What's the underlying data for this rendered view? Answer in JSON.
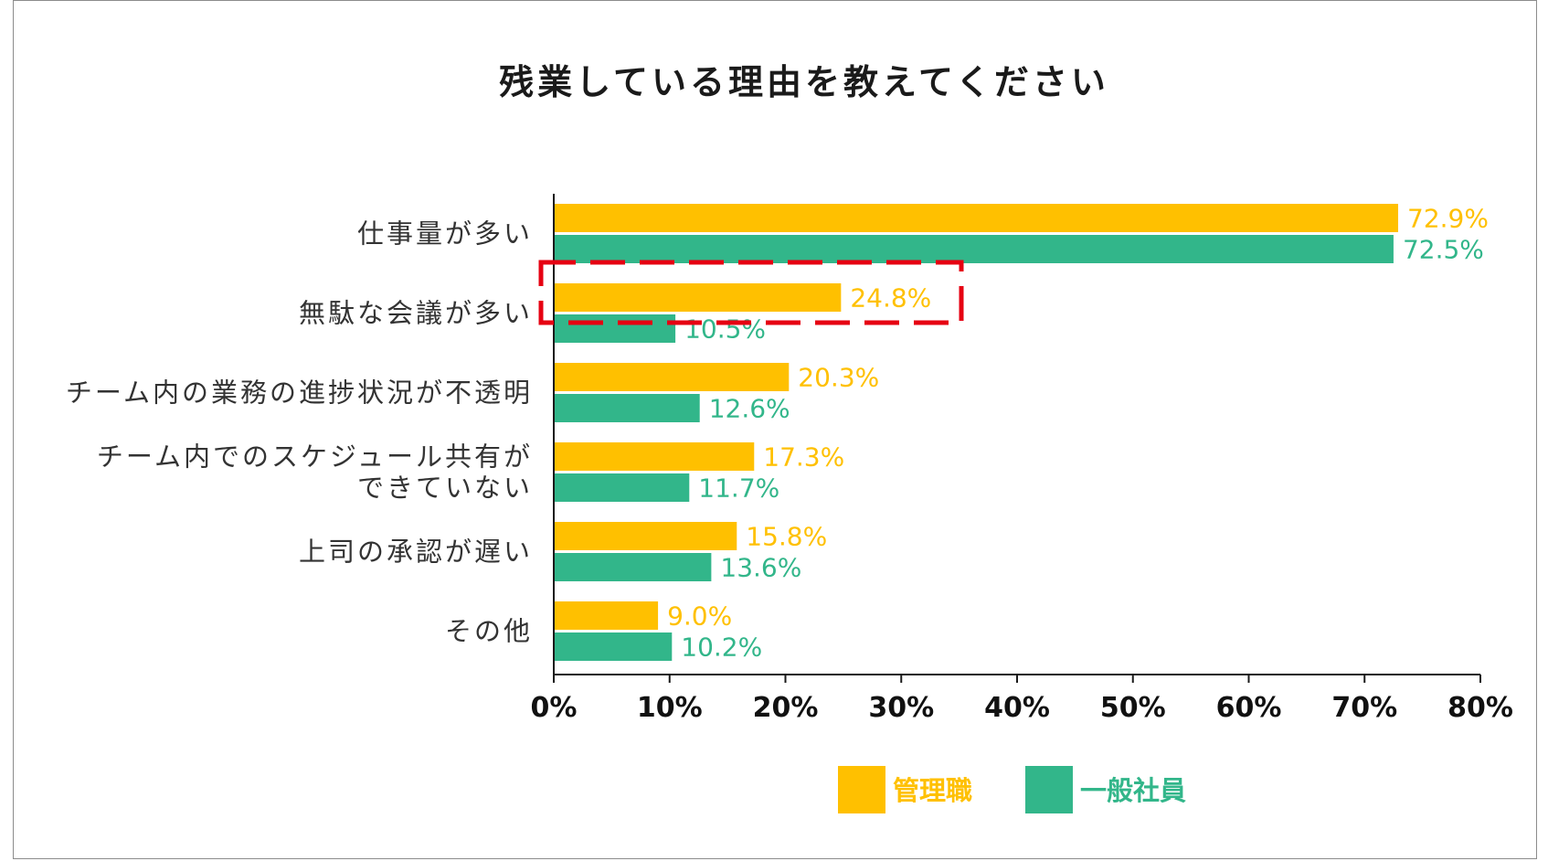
{
  "chart_data": {
    "type": "bar",
    "orientation": "horizontal",
    "title": "残業している理由を教えてください",
    "categories": [
      [
        "仕事量が多い"
      ],
      [
        "無駄な会議が多い"
      ],
      [
        "チーム内の業務の進捗状況が不透明"
      ],
      [
        "チーム内でのスケジュール共有が",
        "できていない"
      ],
      [
        "上司の承認が遅い"
      ],
      [
        "その他"
      ]
    ],
    "series": [
      {
        "name": "管理職",
        "color": "#FFC000",
        "values": [
          72.9,
          24.8,
          20.3,
          17.3,
          15.8,
          9.0
        ],
        "labels": [
          "72.9%",
          "24.8%",
          "20.3%",
          "17.3%",
          "15.8%",
          "9.0%"
        ]
      },
      {
        "name": "一般社員",
        "color": "#32B68A",
        "values": [
          72.5,
          10.5,
          12.6,
          11.7,
          13.6,
          10.2
        ],
        "labels": [
          "72.5%",
          "10.5%",
          "12.6%",
          "11.7%",
          "13.6%",
          "10.2%"
        ]
      }
    ],
    "xlim": [
      0,
      80
    ],
    "xticks": [
      {
        "value": 0,
        "label": "0%"
      },
      {
        "value": 10,
        "label": "10%"
      },
      {
        "value": 20,
        "label": "20%"
      },
      {
        "value": 30,
        "label": "30%"
      },
      {
        "value": 40,
        "label": "40%"
      },
      {
        "value": 50,
        "label": "50%"
      },
      {
        "value": 60,
        "label": "60%"
      },
      {
        "value": 70,
        "label": "70%"
      },
      {
        "value": 80,
        "label": "80%"
      }
    ],
    "legend_position": "bottom",
    "highlight": {
      "category_index": 1,
      "color": "#E60012",
      "style": "dashed"
    }
  }
}
